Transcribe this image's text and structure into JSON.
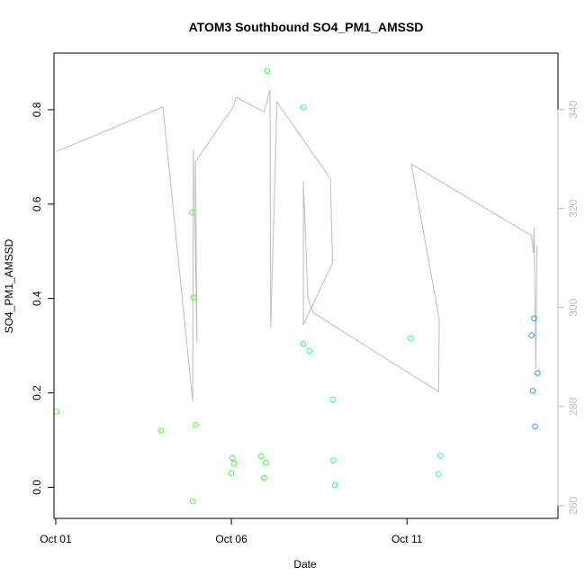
{
  "chart_data": {
    "type": "scatter",
    "title": "ATOM3 Southbound SO4_PM1_AMSSD",
    "xlabel": "Date",
    "ylabel": "SO4_PM1_AMSSD",
    "xlim": [
      -0.05,
      14.3
    ],
    "ylim": [
      -0.066,
      0.92
    ],
    "x_ticks": [
      {
        "value": 0,
        "label": "Oct 01"
      },
      {
        "value": 5,
        "label": "Oct 06"
      },
      {
        "value": 10,
        "label": "Oct 11"
      }
    ],
    "y_ticks": [
      {
        "value": 0.0,
        "label": "0.0"
      },
      {
        "value": 0.2,
        "label": "0.2"
      },
      {
        "value": 0.4,
        "label": "0.4"
      },
      {
        "value": 0.6,
        "label": "0.6"
      },
      {
        "value": 0.8,
        "label": "0.8"
      }
    ],
    "y2lim": [
      257.4,
      351.4
    ],
    "y2_ticks": [
      {
        "value": 260,
        "label": "260"
      },
      {
        "value": 280,
        "label": "280"
      },
      {
        "value": 300,
        "label": "300"
      },
      {
        "value": 320,
        "label": "320"
      },
      {
        "value": 340,
        "label": "340"
      }
    ],
    "points": [
      {
        "x": 0.02,
        "y": 0.16,
        "color": "#66ff00"
      },
      {
        "x": 3.0,
        "y": 0.12,
        "color": "#66ff00"
      },
      {
        "x": 3.88,
        "y": 0.582,
        "color": "#55ff22"
      },
      {
        "x": 3.9,
        "y": -0.03,
        "color": "#55ff22"
      },
      {
        "x": 3.92,
        "y": 0.402,
        "color": "#55ff22"
      },
      {
        "x": 3.98,
        "y": 0.132,
        "color": "#55ff22"
      },
      {
        "x": 5.0,
        "y": 0.03,
        "color": "#44ff33"
      },
      {
        "x": 5.03,
        "y": 0.062,
        "color": "#44ff33"
      },
      {
        "x": 5.08,
        "y": 0.05,
        "color": "#44ff33"
      },
      {
        "x": 5.85,
        "y": 0.066,
        "color": "#33ff44"
      },
      {
        "x": 5.93,
        "y": 0.02,
        "color": "#33ff44"
      },
      {
        "x": 5.98,
        "y": 0.052,
        "color": "#33ff44"
      },
      {
        "x": 6.02,
        "y": 0.882,
        "color": "#33ff44"
      },
      {
        "x": 7.05,
        "y": 0.805,
        "color": "#22ff88"
      },
      {
        "x": 7.05,
        "y": 0.304,
        "color": "#22ff88"
      },
      {
        "x": 7.22,
        "y": 0.289,
        "color": "#22ff88"
      },
      {
        "x": 7.88,
        "y": 0.186,
        "color": "#22ff99"
      },
      {
        "x": 7.9,
        "y": 0.057,
        "color": "#22ff99"
      },
      {
        "x": 7.95,
        "y": 0.005,
        "color": "#22ff99"
      },
      {
        "x": 10.1,
        "y": 0.315,
        "color": "#22ffcc"
      },
      {
        "x": 10.9,
        "y": 0.028,
        "color": "#22ffcc"
      },
      {
        "x": 10.95,
        "y": 0.067,
        "color": "#22ffcc"
      },
      {
        "x": 13.55,
        "y": 0.322,
        "color": "#2299ff"
      },
      {
        "x": 13.58,
        "y": 0.204,
        "color": "#2299ff"
      },
      {
        "x": 13.62,
        "y": 0.358,
        "color": "#2299ff"
      },
      {
        "x": 13.65,
        "y": 0.129,
        "color": "#2299ff"
      },
      {
        "x": 13.72,
        "y": 0.242,
        "color": "#2299ff"
      }
    ],
    "line_y2": {
      "color": "#bdbdbd",
      "points": [
        {
          "x": 0.02,
          "y": 331.5
        },
        {
          "x": 3.05,
          "y": 340.5
        },
        {
          "x": 3.9,
          "y": 281.0
        },
        {
          "x": 3.92,
          "y": 332.0
        },
        {
          "x": 3.95,
          "y": 322.0
        },
        {
          "x": 4.02,
          "y": 293.0
        },
        {
          "x": 3.98,
          "y": 329.5
        },
        {
          "x": 5.05,
          "y": 340.5
        },
        {
          "x": 5.13,
          "y": 342.5
        },
        {
          "x": 5.93,
          "y": 339.5
        },
        {
          "x": 6.1,
          "y": 344.0
        },
        {
          "x": 6.12,
          "y": 296.0
        },
        {
          "x": 6.3,
          "y": 341.5
        },
        {
          "x": 7.82,
          "y": 326.0
        },
        {
          "x": 7.88,
          "y": 309.0
        },
        {
          "x": 7.05,
          "y": 296.5
        },
        {
          "x": 7.05,
          "y": 325.5
        },
        {
          "x": 7.18,
          "y": 302.0
        },
        {
          "x": 7.32,
          "y": 299.0
        },
        {
          "x": 10.9,
          "y": 283.0
        },
        {
          "x": 10.92,
          "y": 297.5
        },
        {
          "x": 10.12,
          "y": 329.0
        },
        {
          "x": 13.55,
          "y": 314.5
        },
        {
          "x": 13.6,
          "y": 311.0
        },
        {
          "x": 13.62,
          "y": 316.0
        },
        {
          "x": 13.67,
          "y": 287.5
        },
        {
          "x": 13.7,
          "y": 312.5
        }
      ]
    },
    "grid": false,
    "legend": "none"
  }
}
